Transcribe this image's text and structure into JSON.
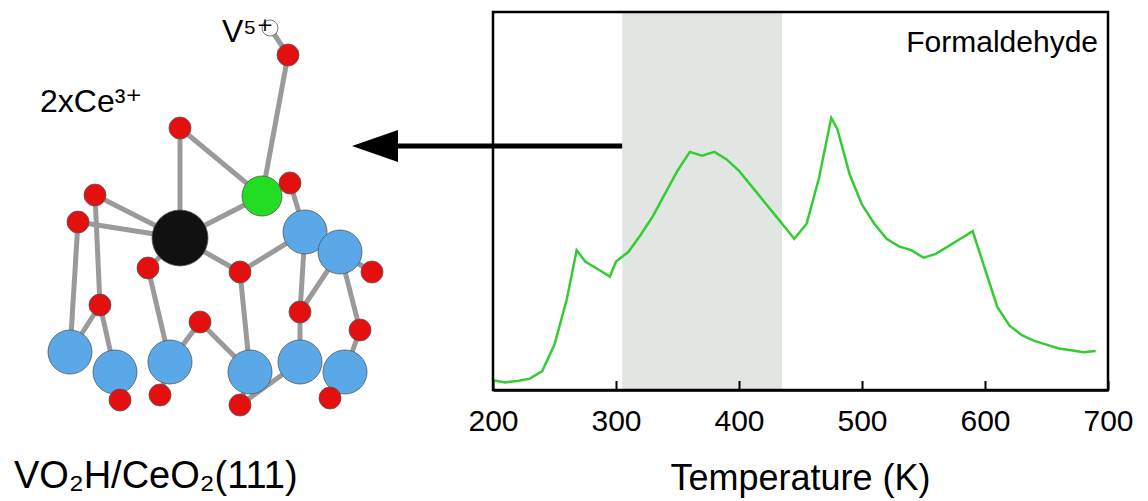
{
  "chart_data": {
    "type": "line",
    "title": "Formaldehyde",
    "x_label": "Temperature (K)",
    "x": [
      200,
      210,
      220,
      230,
      240,
      250,
      260,
      268,
      275,
      285,
      295,
      300,
      310,
      320,
      330,
      340,
      350,
      360,
      370,
      380,
      390,
      400,
      410,
      420,
      430,
      440,
      445,
      455,
      465,
      475,
      480,
      490,
      500,
      510,
      520,
      530,
      540,
      550,
      560,
      570,
      580,
      590,
      600,
      610,
      620,
      630,
      640,
      650,
      660,
      670,
      680,
      690
    ],
    "values": [
      2.6,
      2,
      2.4,
      3,
      5,
      12,
      24,
      37,
      34,
      32,
      30,
      34,
      36.5,
      41,
      46,
      52,
      58,
      63,
      62,
      63,
      61,
      58,
      54,
      50,
      46,
      42,
      40,
      44,
      56,
      72,
      69,
      57,
      49,
      44,
      40,
      38,
      37,
      35,
      36,
      38,
      40,
      42,
      32,
      22,
      17,
      14.5,
      13,
      12,
      11,
      10.5,
      10,
      10.3
    ],
    "color": "#33cc33",
    "xlim": [
      200,
      700
    ],
    "xticks": [
      200,
      300,
      400,
      500,
      600,
      700
    ],
    "ylim": [
      0,
      100
    ],
    "tick_labels": "x",
    "shaded_range": [
      305,
      435
    ],
    "annotations": [
      "V⁵⁺",
      "2xCe³⁺",
      "VO₂H/CeO₂(111)"
    ]
  }
}
